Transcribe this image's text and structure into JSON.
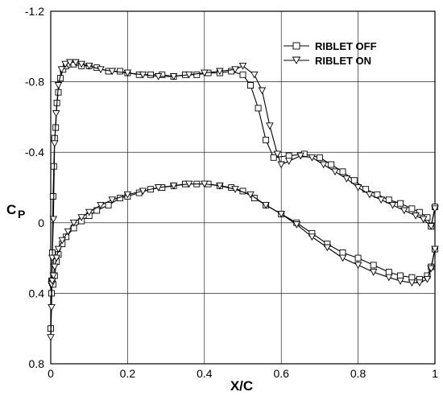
{
  "chart_data": {
    "type": "line",
    "xlabel": "X/C",
    "ylabel": "C",
    "ylabel_sub": "P",
    "xlim": [
      0,
      1
    ],
    "ylim": [
      -1.2,
      0.8
    ],
    "y_inverted": true,
    "grid": true,
    "legend_position": "top-right",
    "x_ticks": [
      "0",
      "0.2",
      "0.4",
      "0.6",
      "0.8",
      "1"
    ],
    "y_ticks": [
      "-1.2",
      "-0.8",
      "-0.4",
      "0",
      "0.4",
      "0.8"
    ],
    "series": [
      {
        "name": "RIBLET OFF",
        "marker": "square",
        "x": [
          0.0,
          0.002,
          0.004,
          0.006,
          0.008,
          0.01,
          0.013,
          0.016,
          0.02,
          0.025,
          0.032,
          0.04,
          0.05,
          0.06,
          0.08,
          0.1,
          0.12,
          0.15,
          0.18,
          0.2,
          0.23,
          0.26,
          0.29,
          0.32,
          0.35,
          0.38,
          0.41,
          0.44,
          0.47,
          0.5,
          0.52,
          0.54,
          0.56,
          0.58,
          0.62,
          0.66,
          0.7,
          0.73,
          0.76,
          0.79,
          0.82,
          0.85,
          0.88,
          0.91,
          0.94,
          0.96,
          0.98,
          0.99,
          1.0,
          0.002,
          0.004,
          0.006,
          0.01,
          0.015,
          0.02,
          0.03,
          0.04,
          0.06,
          0.08,
          0.1,
          0.12,
          0.15,
          0.18,
          0.2,
          0.23,
          0.26,
          0.29,
          0.32,
          0.35,
          0.38,
          0.41,
          0.44,
          0.47,
          0.5,
          0.53,
          0.56,
          0.6,
          0.64,
          0.68,
          0.72,
          0.76,
          0.8,
          0.84,
          0.88,
          0.91,
          0.94,
          0.96,
          0.98,
          0.99,
          1.0
        ],
        "y": [
          0.6,
          0.4,
          0.17,
          -0.15,
          -0.32,
          -0.48,
          -0.54,
          -0.68,
          -0.74,
          -0.82,
          -0.87,
          -0.89,
          -0.9,
          -0.9,
          -0.89,
          -0.89,
          -0.88,
          -0.86,
          -0.86,
          -0.85,
          -0.84,
          -0.84,
          -0.84,
          -0.83,
          -0.84,
          -0.84,
          -0.85,
          -0.85,
          -0.86,
          -0.84,
          -0.78,
          -0.65,
          -0.47,
          -0.37,
          -0.38,
          -0.39,
          -0.37,
          -0.33,
          -0.29,
          -0.24,
          -0.19,
          -0.16,
          -0.13,
          -0.11,
          -0.08,
          -0.06,
          -0.03,
          0.02,
          -0.09,
          0.33,
          0.34,
          0.35,
          0.3,
          0.22,
          0.18,
          0.12,
          0.08,
          0.03,
          -0.01,
          -0.04,
          -0.07,
          -0.1,
          -0.14,
          -0.15,
          -0.17,
          -0.19,
          -0.2,
          -0.21,
          -0.22,
          -0.22,
          -0.22,
          -0.21,
          -0.2,
          -0.18,
          -0.14,
          -0.1,
          -0.05,
          0.0,
          0.06,
          0.12,
          0.17,
          0.2,
          0.24,
          0.28,
          0.3,
          0.31,
          0.32,
          0.3,
          0.25,
          0.15
        ]
      },
      {
        "name": "RIBLET ON",
        "marker": "triangle-down",
        "x": [
          0.0,
          0.002,
          0.004,
          0.007,
          0.01,
          0.014,
          0.02,
          0.028,
          0.038,
          0.05,
          0.065,
          0.08,
          0.1,
          0.13,
          0.16,
          0.2,
          0.24,
          0.28,
          0.32,
          0.36,
          0.4,
          0.44,
          0.48,
          0.5,
          0.53,
          0.55,
          0.57,
          0.59,
          0.6,
          0.62,
          0.65,
          0.68,
          0.71,
          0.74,
          0.77,
          0.8,
          0.83,
          0.86,
          0.89,
          0.92,
          0.95,
          0.97,
          0.99,
          1.0,
          0.002,
          0.004,
          0.007,
          0.01,
          0.015,
          0.02,
          0.03,
          0.045,
          0.06,
          0.08,
          0.1,
          0.13,
          0.16,
          0.2,
          0.24,
          0.28,
          0.32,
          0.36,
          0.4,
          0.44,
          0.48,
          0.52,
          0.56,
          0.6,
          0.64,
          0.68,
          0.72,
          0.76,
          0.8,
          0.84,
          0.88,
          0.91,
          0.94,
          0.96,
          0.98,
          0.99,
          1.0
        ],
        "y": [
          0.65,
          0.48,
          0.2,
          -0.02,
          -0.45,
          -0.62,
          -0.78,
          -0.87,
          -0.9,
          -0.91,
          -0.91,
          -0.9,
          -0.89,
          -0.87,
          -0.86,
          -0.85,
          -0.84,
          -0.83,
          -0.83,
          -0.84,
          -0.85,
          -0.86,
          -0.87,
          -0.89,
          -0.84,
          -0.75,
          -0.55,
          -0.39,
          -0.33,
          -0.35,
          -0.38,
          -0.37,
          -0.33,
          -0.29,
          -0.25,
          -0.2,
          -0.16,
          -0.13,
          -0.1,
          -0.07,
          -0.04,
          -0.02,
          0.02,
          -0.08,
          0.35,
          0.33,
          0.3,
          0.25,
          0.2,
          0.15,
          0.1,
          0.05,
          0.0,
          -0.03,
          -0.06,
          -0.1,
          -0.13,
          -0.16,
          -0.18,
          -0.2,
          -0.21,
          -0.22,
          -0.22,
          -0.21,
          -0.19,
          -0.16,
          -0.1,
          -0.05,
          0.01,
          0.08,
          0.14,
          0.2,
          0.24,
          0.28,
          0.31,
          0.33,
          0.34,
          0.34,
          0.32,
          0.26,
          0.15
        ]
      }
    ]
  }
}
